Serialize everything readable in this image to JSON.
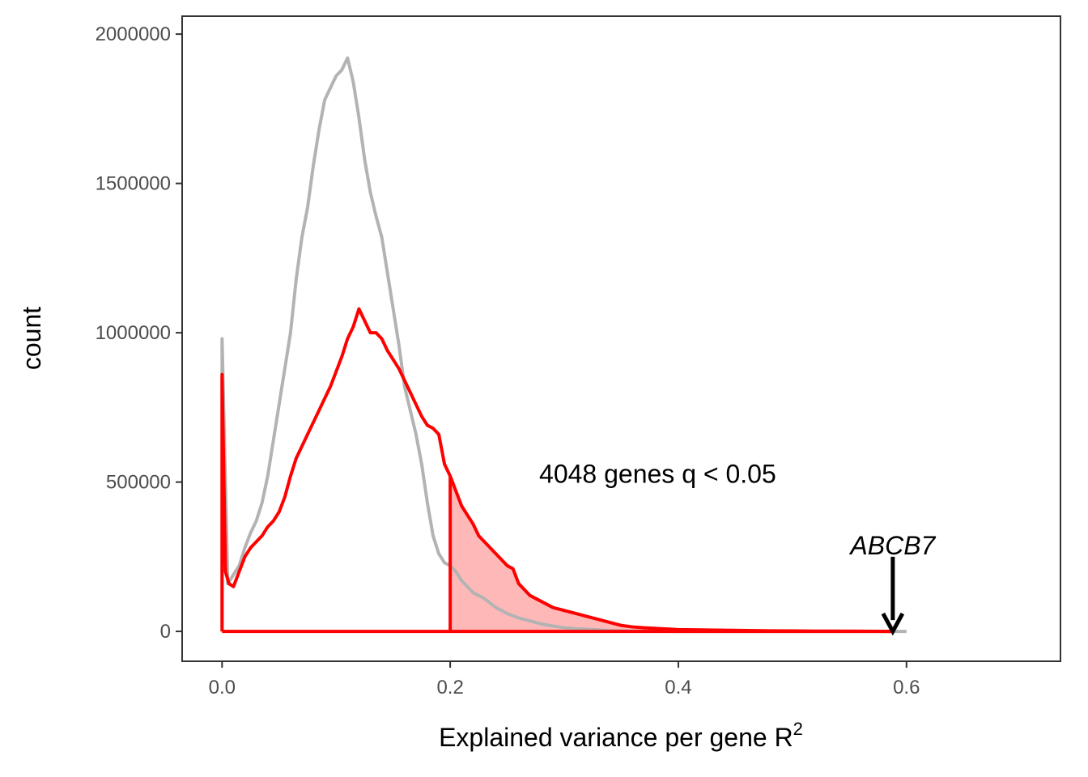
{
  "chart_data": {
    "type": "area",
    "xlabel": "Explained variance per gene R",
    "xlabel_superscript": "2",
    "ylabel": "count",
    "xlim": [
      -0.035,
      0.735
    ],
    "ylim": [
      -100000,
      2060000
    ],
    "x_ticks": [
      0.0,
      0.2,
      0.4,
      0.6
    ],
    "x_tick_labels": [
      "0.0",
      "0.2",
      "0.4",
      "0.6"
    ],
    "y_ticks": [
      0,
      500000,
      1000000,
      1500000,
      2000000
    ],
    "y_tick_labels": [
      "0",
      "500000",
      "1000000",
      "1500000",
      "2000000"
    ],
    "grid": false,
    "series": [
      {
        "color": "#b3b3b3",
        "x": [
          0.0,
          0.005,
          0.01,
          0.015,
          0.02,
          0.025,
          0.03,
          0.035,
          0.04,
          0.045,
          0.05,
          0.055,
          0.06,
          0.065,
          0.07,
          0.075,
          0.08,
          0.085,
          0.09,
          0.095,
          0.1,
          0.105,
          0.11,
          0.115,
          0.12,
          0.125,
          0.13,
          0.135,
          0.14,
          0.145,
          0.15,
          0.155,
          0.16,
          0.165,
          0.17,
          0.175,
          0.18,
          0.185,
          0.19,
          0.195,
          0.2,
          0.205,
          0.21,
          0.215,
          0.22,
          0.225,
          0.23,
          0.235,
          0.24,
          0.245,
          0.25,
          0.26,
          0.27,
          0.28,
          0.29,
          0.3,
          0.31,
          0.32,
          0.33,
          0.34,
          0.35,
          0.36,
          0.38,
          0.4,
          0.45,
          0.5,
          0.55,
          0.6
        ],
        "y": [
          980000,
          160000,
          190000,
          220000,
          280000,
          330000,
          370000,
          430000,
          520000,
          640000,
          760000,
          880000,
          1000000,
          1180000,
          1320000,
          1420000,
          1560000,
          1680000,
          1780000,
          1820000,
          1860000,
          1880000,
          1920000,
          1840000,
          1720000,
          1580000,
          1470000,
          1390000,
          1320000,
          1200000,
          1080000,
          960000,
          820000,
          740000,
          660000,
          560000,
          430000,
          320000,
          260000,
          230000,
          220000,
          200000,
          170000,
          150000,
          130000,
          120000,
          110000,
          95000,
          80000,
          70000,
          60000,
          45000,
          35000,
          25000,
          18000,
          12000,
          9000,
          7000,
          5000,
          3000,
          2000,
          1000,
          500,
          0,
          0,
          0,
          0,
          0
        ]
      },
      {
        "color": "#ff0000",
        "x": [
          0.0,
          0.003,
          0.006,
          0.01,
          0.015,
          0.02,
          0.025,
          0.03,
          0.035,
          0.04,
          0.045,
          0.05,
          0.055,
          0.06,
          0.065,
          0.07,
          0.075,
          0.08,
          0.085,
          0.09,
          0.095,
          0.1,
          0.105,
          0.11,
          0.115,
          0.12,
          0.125,
          0.13,
          0.135,
          0.14,
          0.145,
          0.15,
          0.155,
          0.16,
          0.165,
          0.17,
          0.175,
          0.18,
          0.185,
          0.19,
          0.195,
          0.2,
          0.205,
          0.21,
          0.215,
          0.22,
          0.225,
          0.23,
          0.235,
          0.24,
          0.245,
          0.25,
          0.255,
          0.26,
          0.27,
          0.28,
          0.29,
          0.3,
          0.31,
          0.32,
          0.33,
          0.34,
          0.35,
          0.36,
          0.37,
          0.38,
          0.39,
          0.4,
          0.42,
          0.44,
          0.46,
          0.48,
          0.5,
          0.52,
          0.54,
          0.56,
          0.588
        ],
        "y": [
          860000,
          200000,
          160000,
          150000,
          200000,
          250000,
          280000,
          300000,
          320000,
          350000,
          370000,
          400000,
          450000,
          520000,
          580000,
          620000,
          660000,
          700000,
          740000,
          780000,
          820000,
          870000,
          920000,
          980000,
          1020000,
          1080000,
          1040000,
          1000000,
          1000000,
          980000,
          940000,
          910000,
          880000,
          840000,
          800000,
          760000,
          720000,
          690000,
          680000,
          660000,
          560000,
          520000,
          470000,
          420000,
          390000,
          360000,
          320000,
          300000,
          280000,
          260000,
          240000,
          220000,
          210000,
          160000,
          120000,
          100000,
          80000,
          70000,
          60000,
          50000,
          40000,
          30000,
          20000,
          15000,
          12000,
          10000,
          8000,
          6000,
          5000,
          4000,
          3000,
          2000,
          1500,
          1000,
          800,
          500,
          0
        ]
      }
    ],
    "shaded_region": {
      "from_x": 0.2,
      "to_x": 0.588,
      "color": "#ff0000",
      "opacity": 0.28
    },
    "annotations": [
      {
        "text": "4048 genes q < 0.05",
        "x": 0.278,
        "y": 530000
      },
      {
        "text": "ABCB7",
        "x": 0.588,
        "y": 290000,
        "italic": true,
        "arrow_from_y": 250000,
        "arrow_to_y": 0
      }
    ]
  }
}
